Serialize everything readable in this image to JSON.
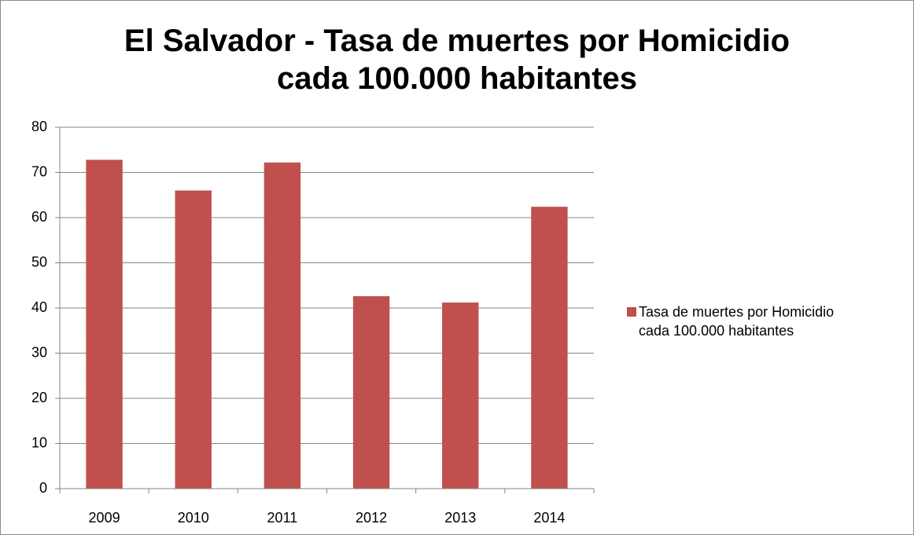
{
  "chart_data": {
    "type": "bar",
    "title": "El Salvador - Tasa de muertes por Homicidio cada 100.000 habitantes",
    "categories": [
      "2009",
      "2010",
      "2011",
      "2012",
      "2013",
      "2014"
    ],
    "series": [
      {
        "name": "Tasa de muertes por Homicidio cada 100.000 habitantes",
        "color": "#c0504d",
        "values": [
          72.8,
          66,
          72.2,
          42.6,
          41.2,
          62.4
        ]
      }
    ],
    "ylim": [
      0,
      80
    ],
    "yticks": [
      0,
      10,
      20,
      30,
      40,
      50,
      60,
      70,
      80
    ],
    "grid": true,
    "legend": "right"
  }
}
